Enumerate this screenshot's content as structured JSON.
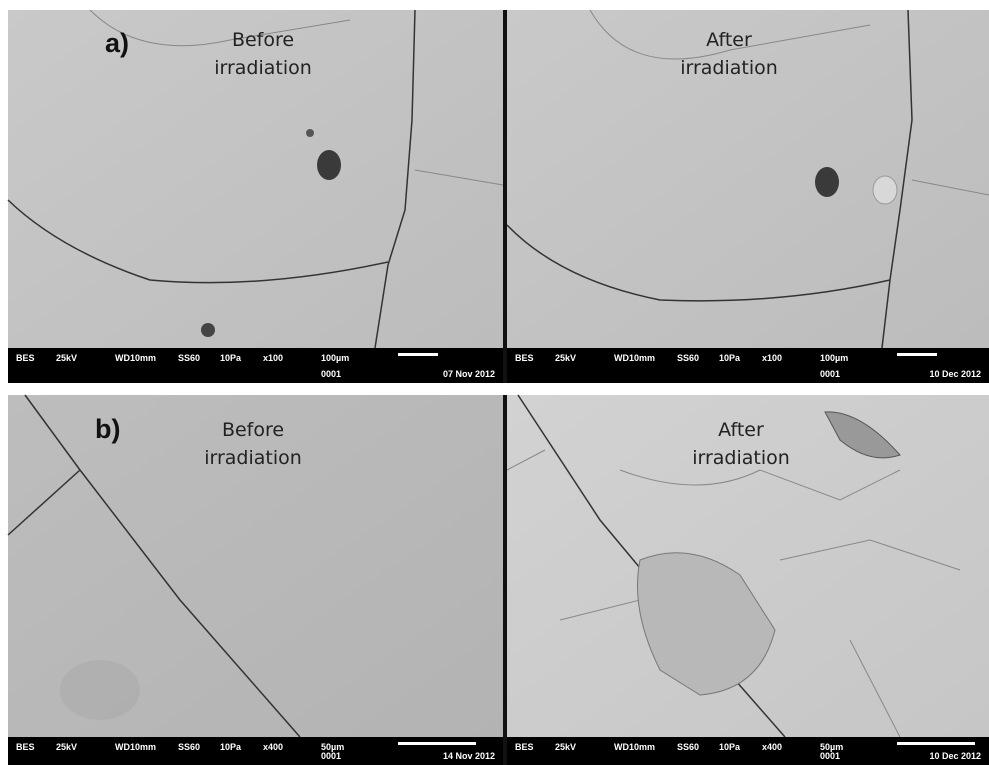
{
  "panels": [
    {
      "label": "a)",
      "images": [
        {
          "caption": [
            "Before",
            "irradiation"
          ],
          "info": {
            "detector": "BES",
            "voltage": "25kV",
            "wd": "WD10mm",
            "spot": "SS60",
            "pressure": "10Pa",
            "mag": "x100",
            "scale": "100µm",
            "number": "0001",
            "date": "07 Nov 2012"
          }
        },
        {
          "caption": [
            "After",
            "irradiation"
          ],
          "info": {
            "detector": "BES",
            "voltage": "25kV",
            "wd": "WD10mm",
            "spot": "SS60",
            "pressure": "10Pa",
            "mag": "x100",
            "scale": "100µm",
            "number": "0001",
            "date": "10 Dec 2012"
          }
        }
      ]
    },
    {
      "label": "b)",
      "images": [
        {
          "caption": [
            "Before",
            "irradiation"
          ],
          "info": {
            "detector": "BES",
            "voltage": "25kV",
            "wd": "WD10mm",
            "spot": "SS60",
            "pressure": "10Pa",
            "mag": "x400",
            "scale": "50µm",
            "number": "0001",
            "date": "14 Nov 2012"
          }
        },
        {
          "caption": [
            "After",
            "irradiation"
          ],
          "info": {
            "detector": "BES",
            "voltage": "25kV",
            "wd": "WD10mm",
            "spot": "SS60",
            "pressure": "10Pa",
            "mag": "x400",
            "scale": "50µm",
            "number": "0001",
            "date": "10 Dec 2012"
          }
        }
      ]
    }
  ]
}
